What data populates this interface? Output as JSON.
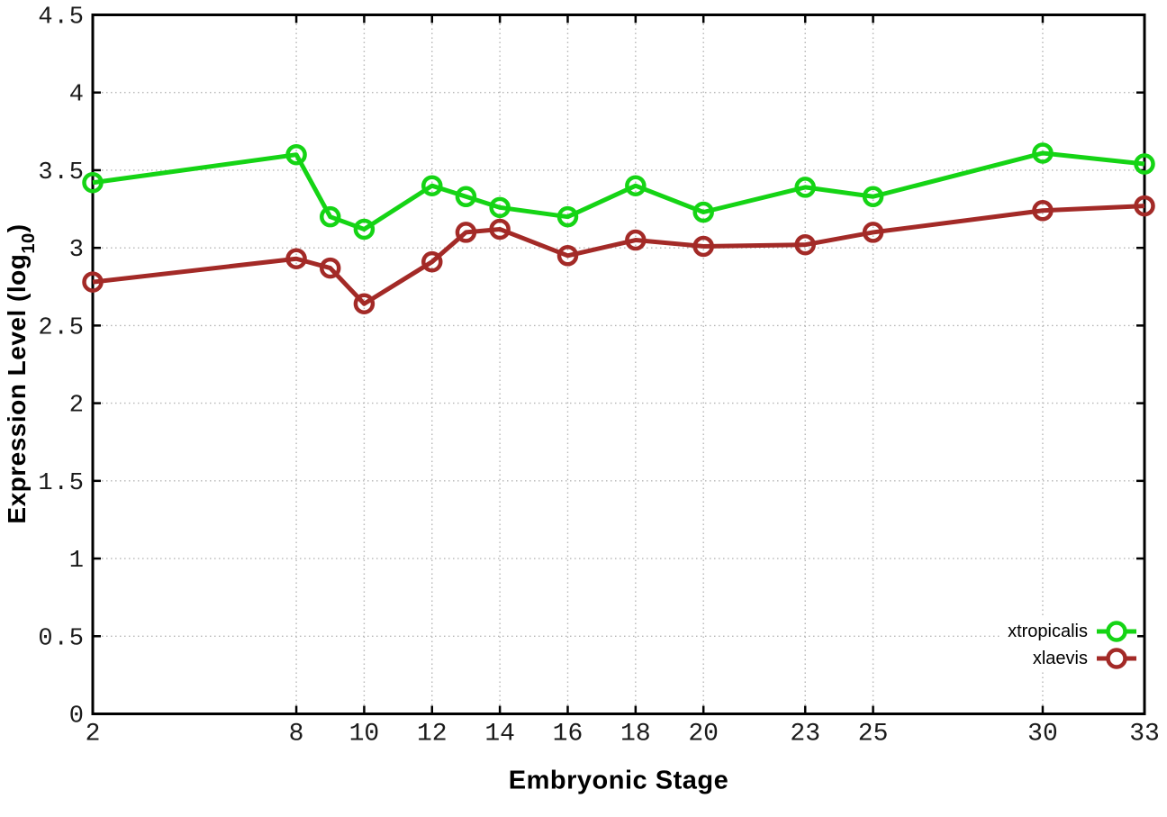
{
  "figure": {
    "background": "#ffffff",
    "border_color": "#000000"
  },
  "chart_data": {
    "type": "line",
    "title": "",
    "xlabel": "Embryonic Stage",
    "ylabel": "Expression Level (log10)",
    "ylabel_rich": {
      "pre": "Expression Level (log",
      "sub": "10",
      "post": ")"
    },
    "xlim": [
      2,
      33
    ],
    "ylim": [
      0,
      4.5
    ],
    "x_ticks": [
      2,
      8,
      10,
      12,
      14,
      16,
      18,
      20,
      23,
      25,
      30,
      33
    ],
    "y_ticks": [
      0,
      0.5,
      1,
      1.5,
      2,
      2.5,
      3,
      3.5,
      4,
      4.5
    ],
    "grid": "dotted",
    "grid_color": "#b5b5b5",
    "axis_color": "#000000",
    "tick_label_color": "#1a1a1a",
    "legend_position": "bottom-right",
    "x": [
      2,
      8,
      9,
      10,
      12,
      13,
      14,
      16,
      18,
      20,
      23,
      25,
      30,
      33
    ],
    "series": [
      {
        "name": "xtropicalis",
        "color": "#15d415",
        "marker": "open-circle",
        "values": [
          3.42,
          3.6,
          3.2,
          3.12,
          3.4,
          3.33,
          3.26,
          3.2,
          3.4,
          3.23,
          3.39,
          3.33,
          3.61,
          3.54
        ]
      },
      {
        "name": "xlaevis",
        "color": "#a32a27",
        "marker": "open-circle",
        "values": [
          2.78,
          2.93,
          2.87,
          2.64,
          2.91,
          3.1,
          3.12,
          2.95,
          3.05,
          3.01,
          3.02,
          3.1,
          3.24,
          3.27
        ]
      }
    ]
  }
}
